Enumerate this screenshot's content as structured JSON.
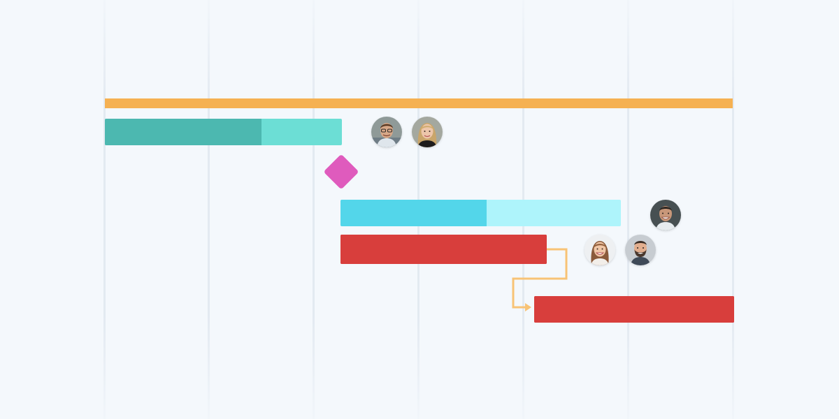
{
  "colors": {
    "background": "#f4f8fc",
    "grid": "#e1e8f0",
    "summary": "#f5b152",
    "teal_done": "#4cb8b0",
    "teal_rest": "#6cded5",
    "milestone": "#df5bbd",
    "cyan_done": "#53d6ea",
    "cyan_rest": "#aef4fb",
    "red": "#d83e3c",
    "dependency": "#f8c376"
  },
  "chart_data": {
    "type": "gantt",
    "columns": 6,
    "summary": {
      "start": 0,
      "end": 6
    },
    "tasks": [
      {
        "id": "task-1",
        "start": 0,
        "end": 2.25,
        "progress": 0.66,
        "color": "teal",
        "assignees": [
          "avatar-man-glasses",
          "avatar-woman-blonde"
        ]
      },
      {
        "id": "task-2",
        "start": 2.25,
        "end": 4.92,
        "progress": 0.52,
        "color": "cyan",
        "assignees": [
          "avatar-man-smiling"
        ]
      },
      {
        "id": "task-3",
        "start": 2.25,
        "end": 4.21,
        "progress": 1.0,
        "color": "red",
        "assignees": [
          "avatar-woman-brown-hair",
          "avatar-man-beard"
        ]
      },
      {
        "id": "task-4",
        "start": 4.1,
        "end": 6.0,
        "progress": 1.0,
        "color": "red",
        "assignees": []
      }
    ],
    "milestones": [
      {
        "id": "milestone-1",
        "at": 2.25
      }
    ],
    "dependencies": [
      {
        "from": "task-3",
        "to": "task-4"
      }
    ]
  }
}
